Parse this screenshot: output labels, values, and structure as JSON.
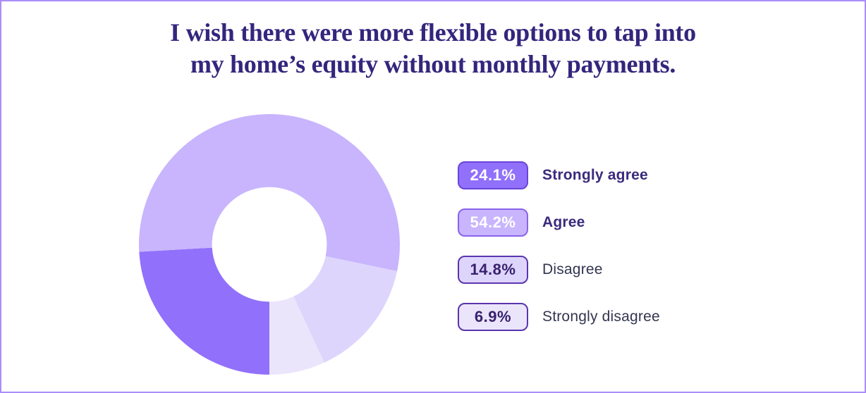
{
  "page": {
    "background": "#ffffff",
    "border_color": "#ab8efa"
  },
  "title": {
    "line1": "I wish there were more flexible options to tap into",
    "line2": "my home’s equity without monthly payments.",
    "color": "#33267d"
  },
  "chart_data": {
    "type": "pie",
    "subtype": "donut",
    "title": "I wish there were more flexible options to tap into my home’s equity without monthly payments.",
    "categories": [
      "Strongly agree",
      "Agree",
      "Disagree",
      "Strongly disagree"
    ],
    "values": [
      24.1,
      54.2,
      14.8,
      6.9
    ],
    "unit": "%",
    "colors": [
      "#9170fb",
      "#c8b5fd",
      "#ded5fd",
      "#ebe5fc"
    ],
    "start_angle_deg": 180,
    "direction": "clockwise",
    "donut_hole_ratio": 0.44,
    "hole_color": "#ffffff",
    "legend_position": "right",
    "grid": false
  },
  "legend": {
    "items": [
      {
        "value_label": "24.1%",
        "label": "Strongly agree",
        "badge_bg": "#9170fb",
        "badge_border": "#6b45d9",
        "badge_text_color": "#ffffff",
        "label_color": "#3b2a7d",
        "label_bold": true
      },
      {
        "value_label": "54.2%",
        "label": "Agree",
        "badge_bg": "#c8b5fd",
        "badge_border": "#8a63ec",
        "badge_text_color": "#ffffff",
        "label_color": "#3b2a7d",
        "label_bold": true
      },
      {
        "value_label": "14.8%",
        "label": "Disagree",
        "badge_bg": "#ded5fd",
        "badge_border": "#5a35ae",
        "badge_text_color": "#38216e",
        "label_color": "#323650",
        "label_bold": false
      },
      {
        "value_label": "6.9%",
        "label": "Strongly disagree",
        "badge_bg": "#ebe5fc",
        "badge_border": "#5a35ae",
        "badge_text_color": "#38216e",
        "label_color": "#323650",
        "label_bold": false
      }
    ]
  }
}
